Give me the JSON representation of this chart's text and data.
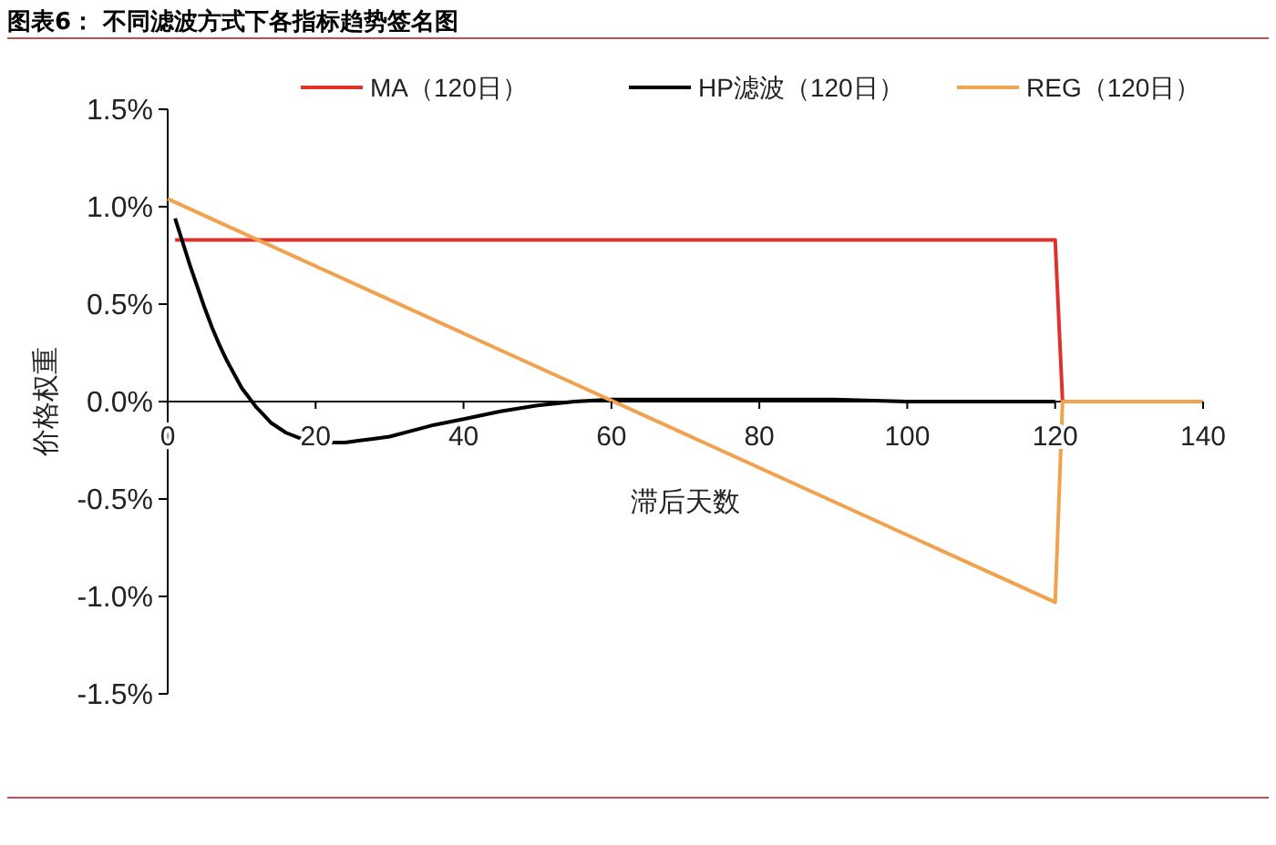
{
  "chart_data": {
    "type": "line",
    "title": "图表6：  不同滤波方式下各指标趋势签名图",
    "xlabel": "滞后天数",
    "ylabel": "价格权重",
    "xlim": [
      0,
      140
    ],
    "xticks": [
      0,
      20,
      40,
      60,
      80,
      100,
      120,
      140
    ],
    "ylim": [
      -1.5,
      1.5
    ],
    "yticks": [
      {
        "value": -1.5,
        "label": "-1.5%"
      },
      {
        "value": -1,
        "label": "-1.0%"
      },
      {
        "value": -0.5,
        "label": "-0.5%"
      },
      {
        "value": 0,
        "label": "0.0%"
      },
      {
        "value": 0.5,
        "label": "0.5%"
      },
      {
        "value": 1,
        "label": "1.0%"
      },
      {
        "value": 1.5,
        "label": "1.5%"
      }
    ],
    "grid": false,
    "legend": "top",
    "marker": "none",
    "line_style": "solid",
    "series": [
      {
        "name": "MA（120日）",
        "color": "#e0312b",
        "x": [
          1,
          120,
          121
        ],
        "values": [
          0.83,
          0.83,
          0
        ]
      },
      {
        "name": "HP滤波（120日）",
        "color": "#000000",
        "x": [
          1,
          2,
          3,
          4,
          5,
          6,
          7,
          8,
          9,
          10,
          11,
          12,
          13,
          14,
          16,
          18,
          20,
          22,
          24,
          26,
          28,
          30,
          33,
          36,
          40,
          45,
          50,
          55,
          60,
          70,
          80,
          90,
          100,
          110,
          120
        ],
        "values": [
          0.94,
          0.82,
          0.7,
          0.59,
          0.48,
          0.38,
          0.29,
          0.21,
          0.14,
          0.07,
          0.02,
          -0.03,
          -0.07,
          -0.11,
          -0.16,
          -0.19,
          -0.2,
          -0.21,
          -0.21,
          -0.2,
          -0.19,
          -0.18,
          -0.15,
          -0.12,
          -0.09,
          -0.05,
          -0.02,
          0,
          0.01,
          0.01,
          0.01,
          0.01,
          0,
          0,
          0
        ]
      },
      {
        "name": "REG（120日）",
        "color": "#f0a24e",
        "x": [
          0,
          120,
          121,
          140
        ],
        "values": [
          1.04,
          -1.03,
          0,
          0
        ]
      }
    ]
  }
}
